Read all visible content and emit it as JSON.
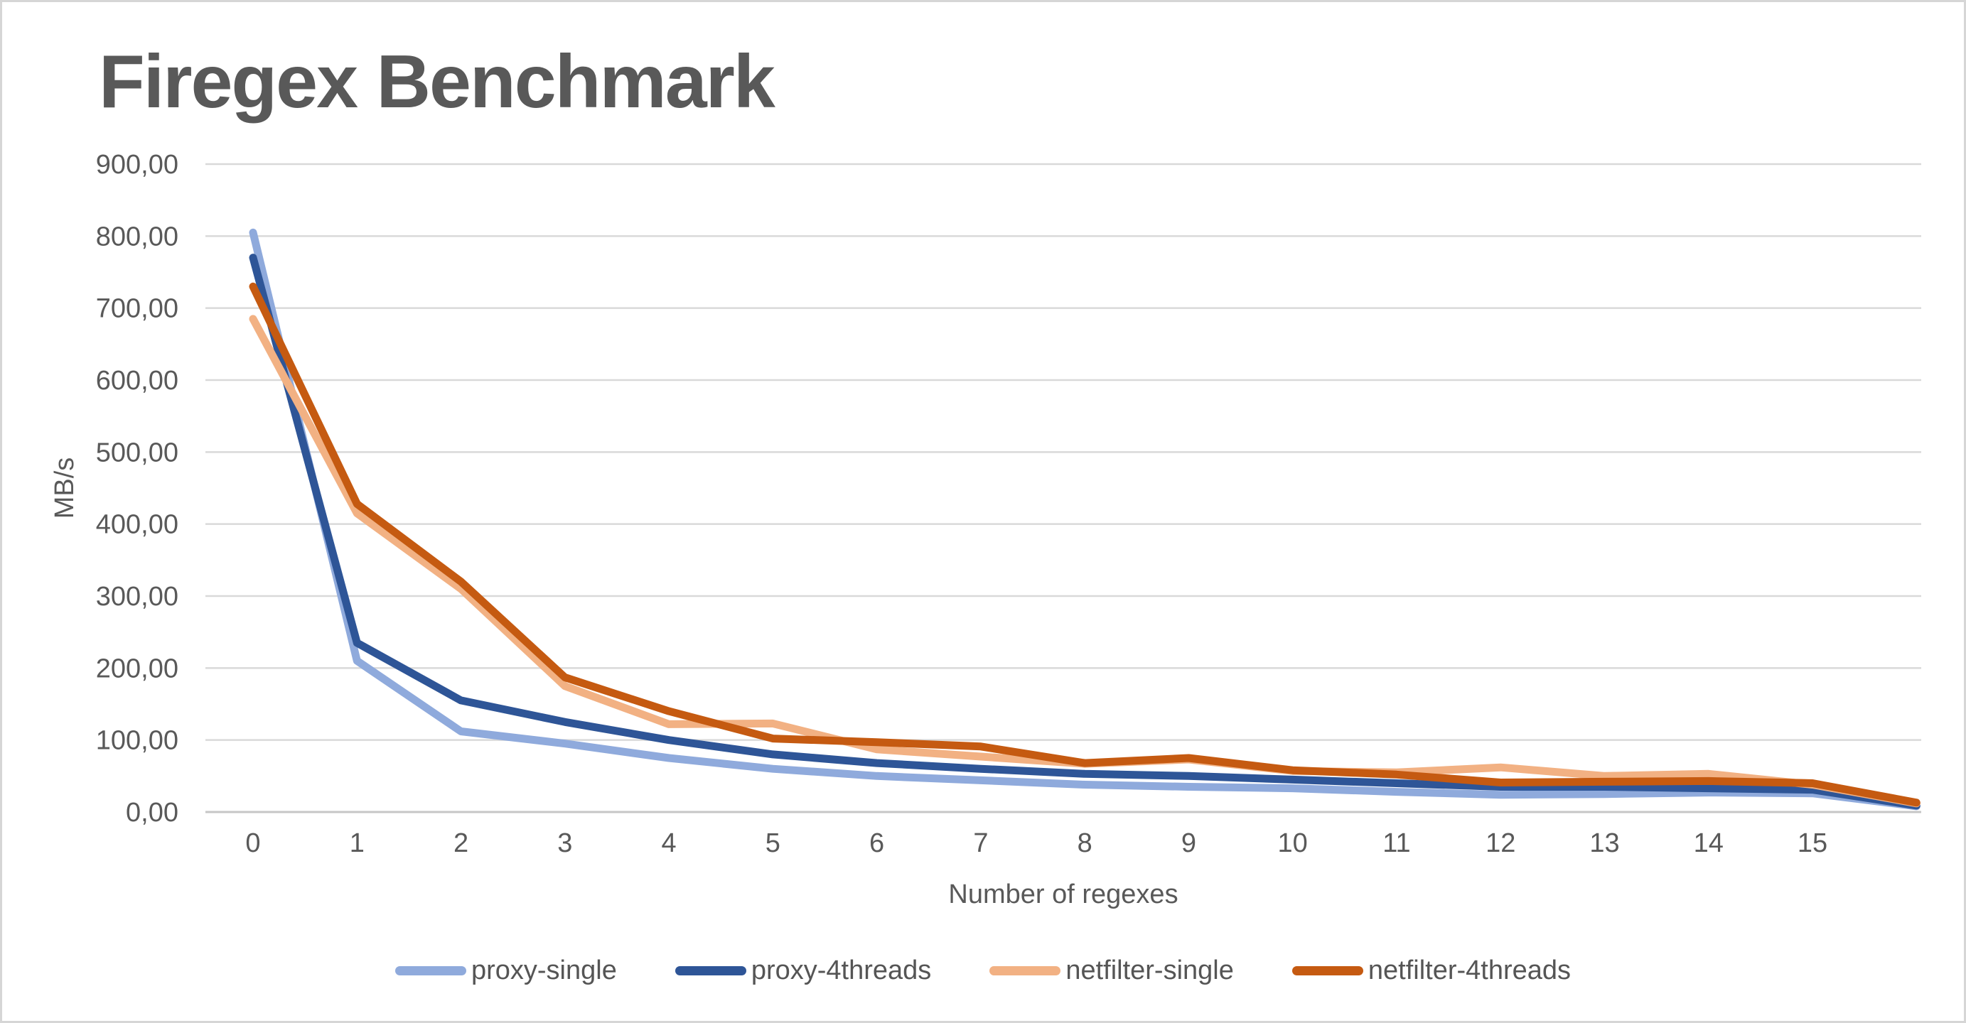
{
  "chart_data": {
    "type": "line",
    "title": "Firegex Benchmark",
    "xlabel": "Number of regexes",
    "ylabel": "MB/s",
    "x": [
      0,
      1,
      2,
      3,
      4,
      5,
      6,
      7,
      8,
      9,
      10,
      11,
      12,
      13,
      14,
      15,
      16
    ],
    "x_tick_labels": [
      "0",
      "1",
      "2",
      "3",
      "4",
      "5",
      "6",
      "7",
      "8",
      "9",
      "10",
      "11",
      "12",
      "13",
      "14",
      "15"
    ],
    "y_tick_labels": [
      "0,00",
      "100,00",
      "200,00",
      "300,00",
      "400,00",
      "500,00",
      "600,00",
      "700,00",
      "800,00",
      "900,00"
    ],
    "ylim": [
      0,
      900
    ],
    "y_tick_step": 100,
    "grid": true,
    "legend_position": "bottom",
    "series": [
      {
        "name": "proxy-single",
        "color": "#8FAADC",
        "values": [
          805,
          210,
          112,
          95,
          75,
          60,
          50,
          44,
          38,
          35,
          33,
          28,
          24,
          25,
          27,
          26,
          8
        ]
      },
      {
        "name": "proxy-4threads",
        "color": "#2E5597",
        "values": [
          770,
          235,
          155,
          125,
          100,
          80,
          68,
          60,
          53,
          50,
          45,
          40,
          35,
          35,
          33,
          31,
          9
        ]
      },
      {
        "name": "netfilter-single",
        "color": "#F2B183",
        "values": [
          685,
          415,
          310,
          175,
          122,
          123,
          87,
          77,
          67,
          73,
          57,
          55,
          62,
          50,
          53,
          38,
          12
        ]
      },
      {
        "name": "netfilter-4threads",
        "color": "#C55A11",
        "values": [
          730,
          428,
          320,
          187,
          140,
          102,
          97,
          91,
          68,
          75,
          58,
          52,
          41,
          42,
          43,
          40,
          13
        ]
      }
    ],
    "style": {
      "grid_color": "#D9D9D9",
      "zero_line_color": "#C6C6C6",
      "label_color": "#595959",
      "title_color": "#595959",
      "line_width": 11
    }
  }
}
